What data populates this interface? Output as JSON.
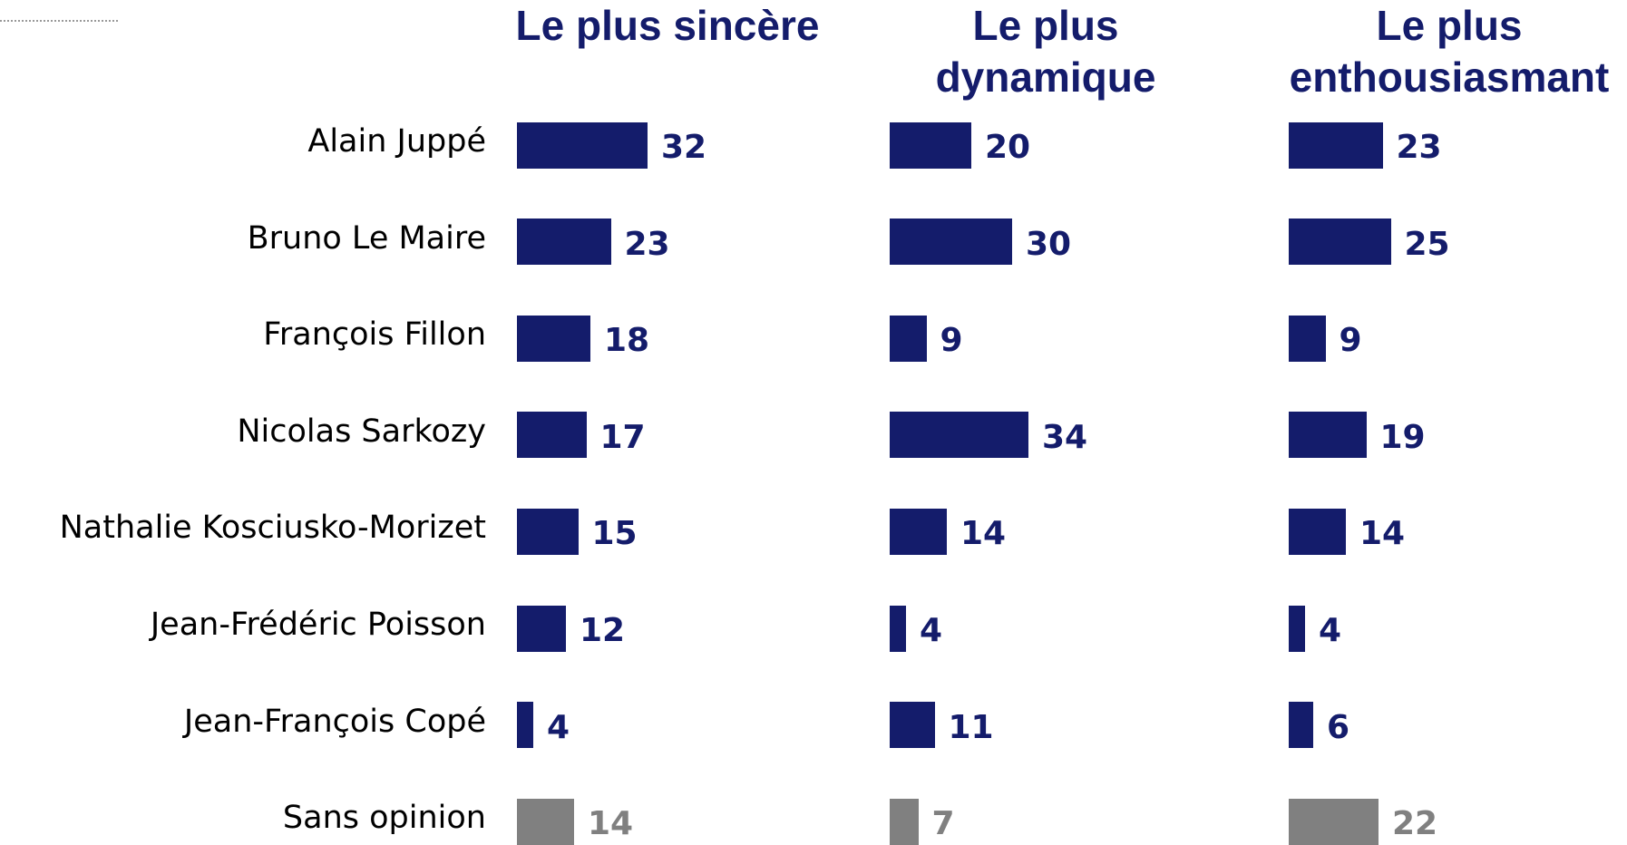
{
  "chart_data": {
    "type": "bar",
    "categories": [
      "Alain Juppé",
      "Bruno Le Maire",
      "François Fillon",
      "Nicolas Sarkozy",
      "Nathalie Kosciusko-Morizet",
      "Jean-Frédéric Poisson",
      "Jean-François Copé",
      "Sans opinion"
    ],
    "series": [
      {
        "name": "Le plus sincère",
        "values": [
          32,
          23,
          18,
          17,
          15,
          12,
          4,
          14
        ],
        "colors": [
          "#141c6b",
          "#141c6b",
          "#141c6b",
          "#141c6b",
          "#141c6b",
          "#141c6b",
          "#141c6b",
          "#808080"
        ]
      },
      {
        "name": "Le plus dynamique",
        "values": [
          20,
          30,
          9,
          34,
          14,
          4,
          11,
          7
        ],
        "colors": [
          "#141c6b",
          "#141c6b",
          "#141c6b",
          "#141c6b",
          "#141c6b",
          "#141c6b",
          "#141c6b",
          "#808080"
        ]
      },
      {
        "name": "Le plus enthousiasmant",
        "values": [
          23,
          25,
          9,
          19,
          14,
          4,
          6,
          22
        ],
        "colors": [
          "#141c6b",
          "#141c6b",
          "#141c6b",
          "#141c6b",
          "#141c6b",
          "#141c6b",
          "#141c6b",
          "#808080"
        ]
      }
    ]
  }
}
